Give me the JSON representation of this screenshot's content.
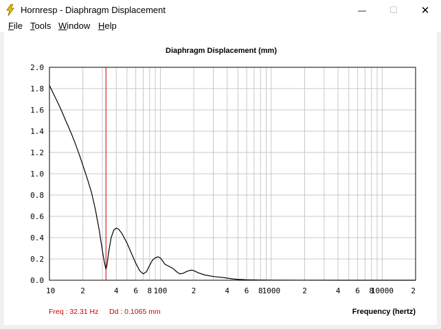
{
  "window": {
    "title": "Hornresp - Diaphragm Displacement",
    "minimize": "—",
    "maximize": "☐",
    "close": "✕"
  },
  "menu": [
    {
      "label": "File",
      "key": "F",
      "rest": "ile"
    },
    {
      "label": "Tools",
      "key": "T",
      "rest": "ools"
    },
    {
      "label": "Window",
      "key": "W",
      "rest": "indow"
    },
    {
      "label": "Help",
      "key": "H",
      "rest": "elp"
    }
  ],
  "status": {
    "freq": "Freq : 32.31 Hz",
    "dd": "Dd : 0.1065 mm"
  },
  "colors": {
    "curve": "#000000",
    "cursor": "#cc0000",
    "grid": "#c8c8c8",
    "status_text": "#cc0000"
  },
  "chart_data": {
    "type": "line",
    "title": "Diaphragm Displacement (mm)",
    "xlabel": "Frequency (hertz)",
    "ylabel": "",
    "xscale": "log",
    "xlim": [
      10,
      20000
    ],
    "ylim": [
      0,
      2.0
    ],
    "yticks": [
      "2.0",
      "1.8",
      "1.6",
      "1.4",
      "1.2",
      "1.0",
      "0.8",
      "0.6",
      "0.4",
      "0.2",
      "0.0"
    ],
    "xtick_labels": [
      {
        "f": 10,
        "t": "10"
      },
      {
        "f": 20,
        "t": "2"
      },
      {
        "f": 40,
        "t": "4"
      },
      {
        "f": 60,
        "t": "6"
      },
      {
        "f": 80,
        "t": "8"
      },
      {
        "f": 100,
        "t": "100"
      },
      {
        "f": 200,
        "t": "2"
      },
      {
        "f": 400,
        "t": "4"
      },
      {
        "f": 600,
        "t": "6"
      },
      {
        "f": 800,
        "t": "8"
      },
      {
        "f": 1000,
        "t": "1000"
      },
      {
        "f": 2000,
        "t": "2"
      },
      {
        "f": 4000,
        "t": "4"
      },
      {
        "f": 6000,
        "t": "6"
      },
      {
        "f": 8000,
        "t": "8"
      },
      {
        "f": 10000,
        "t": "10000"
      },
      {
        "f": 20000,
        "t": "2"
      }
    ],
    "cursor_freq": 32.31,
    "cursor_value": 0.1065,
    "series": [
      {
        "points": [
          [
            10,
            1.83
          ],
          [
            11,
            1.74
          ],
          [
            12,
            1.66
          ],
          [
            13,
            1.58
          ],
          [
            14,
            1.5
          ],
          [
            15,
            1.43
          ],
          [
            16,
            1.36
          ],
          [
            17,
            1.29
          ],
          [
            18,
            1.22
          ],
          [
            19,
            1.15
          ],
          [
            20,
            1.08
          ],
          [
            22,
            0.95
          ],
          [
            24,
            0.82
          ],
          [
            26,
            0.66
          ],
          [
            28,
            0.48
          ],
          [
            30,
            0.28
          ],
          [
            31,
            0.19
          ],
          [
            32,
            0.12
          ],
          [
            32.31,
            0.1065
          ],
          [
            33,
            0.14
          ],
          [
            34,
            0.25
          ],
          [
            36,
            0.4
          ],
          [
            38,
            0.47
          ],
          [
            40,
            0.49
          ],
          [
            42,
            0.48
          ],
          [
            45,
            0.44
          ],
          [
            50,
            0.35
          ],
          [
            55,
            0.25
          ],
          [
            60,
            0.16
          ],
          [
            65,
            0.09
          ],
          [
            70,
            0.06
          ],
          [
            75,
            0.08
          ],
          [
            80,
            0.14
          ],
          [
            85,
            0.19
          ],
          [
            90,
            0.21
          ],
          [
            95,
            0.22
          ],
          [
            100,
            0.21
          ],
          [
            105,
            0.18
          ],
          [
            110,
            0.15
          ],
          [
            120,
            0.13
          ],
          [
            130,
            0.11
          ],
          [
            140,
            0.08
          ],
          [
            150,
            0.06
          ],
          [
            160,
            0.065
          ],
          [
            175,
            0.085
          ],
          [
            190,
            0.095
          ],
          [
            200,
            0.09
          ],
          [
            220,
            0.07
          ],
          [
            250,
            0.05
          ],
          [
            300,
            0.035
          ],
          [
            350,
            0.028
          ],
          [
            400,
            0.02
          ],
          [
            450,
            0.012
          ],
          [
            500,
            0.008
          ],
          [
            600,
            0.004
          ],
          [
            800,
            0.002
          ],
          [
            1000,
            0.001
          ],
          [
            2000,
            0.0005
          ],
          [
            5000,
            0.0002
          ],
          [
            10000,
            0.0001
          ],
          [
            20000,
            0.0
          ]
        ]
      }
    ]
  }
}
